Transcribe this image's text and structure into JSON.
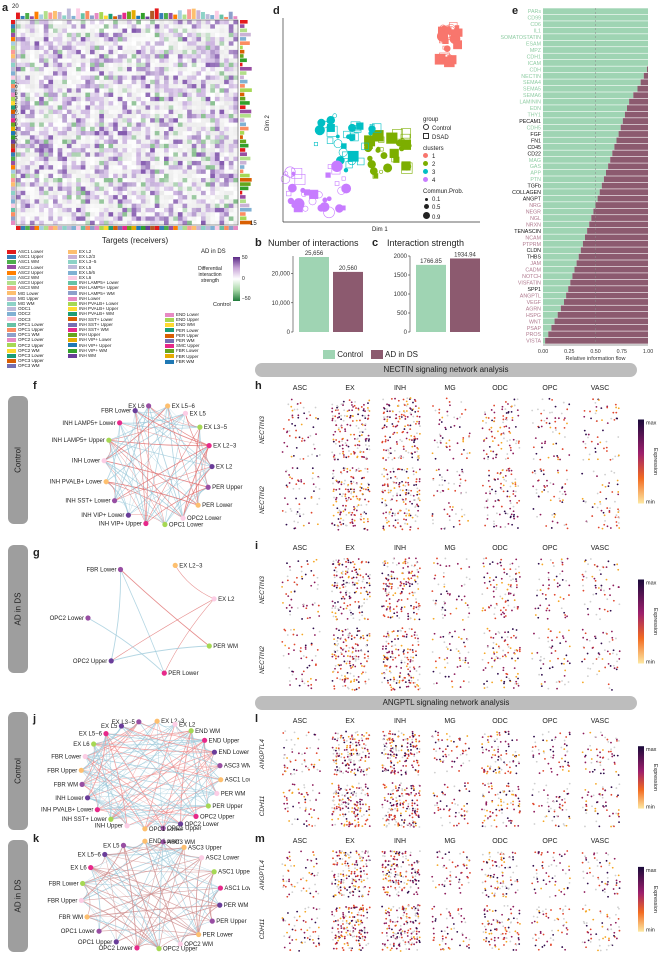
{
  "panel_labels": {
    "a": "a",
    "b": "b",
    "c": "c",
    "d": "d",
    "e": "e",
    "f": "f",
    "g": "g",
    "h": "h",
    "i": "i",
    "j": "j",
    "k": "k",
    "l": "l",
    "m": "m"
  },
  "heatmap": {
    "top_max": "20",
    "right_max": "15",
    "ylabel": "Sources (senders)",
    "xlabel": "Targets (receivers)",
    "legend_title": "AD in DS",
    "legend_side": "Differential interaction strength",
    "legend_bottom": "Control",
    "legend_ticks": [
      "50",
      "0",
      "−50"
    ]
  },
  "cell_legend": {
    "col1": [
      "ASC1 Lower",
      "ASC1 Upper",
      "ASC1 WM",
      "ASC2 Lower",
      "ASC2 Upper",
      "ASC2 WM",
      "ASC3 Upper",
      "ASC3 WM",
      "MG Lower",
      "MG Upper",
      "MG WM",
      "ODC1",
      "ODC2",
      "ODC3",
      "OPC1 Lower",
      "OPC1 Upper",
      "OPC1 WM",
      "OPC2 Lower",
      "OPC2 Upper",
      "OPC2 WM",
      "OPC3 Lower",
      "OPC3 Upper",
      "OPC3 WM"
    ],
    "col2": [
      "EX L2",
      "EX L2/3",
      "EX L3−5",
      "EX L5",
      "EX L5/6",
      "EX L6",
      "INH LAMP5+ Lower",
      "INH LAMP5+ Upper",
      "INH LAMP5+ WM",
      "INH Lower",
      "INH PVALB+ Lower",
      "INH PVALB+ Upper",
      "INH PVALB+ WM",
      "INH SST+ Lower",
      "INH SST+ Upper",
      "INH SST+ WM",
      "INH Upper",
      "INH VIP+ Lower",
      "INH VIP+ Upper",
      "INH VIP+ WM",
      "INH WM"
    ],
    "col3": [
      "END Lower",
      "END Upper",
      "END WM",
      "PER Lower",
      "PER Upper",
      "PER WM",
      "SMC Upper",
      "FBR Lower",
      "FBR Upper",
      "FBR WM"
    ]
  },
  "scatter_d": {
    "xlabel": "Dim 1",
    "ylabel": "Dim 2",
    "group_title": "group",
    "groups": [
      "Control",
      "DSAD"
    ],
    "clusters_title": "clusters",
    "clusters": [
      "1",
      "2",
      "3",
      "4"
    ],
    "cluster_colors": [
      "#f8766d",
      "#7cae00",
      "#00bfc4",
      "#c77cff"
    ],
    "size_title": "Commun.Prob.",
    "sizes": [
      "0.1",
      "0.5",
      "0.9"
    ]
  },
  "bar_b": {
    "title": "Number of interactions",
    "values": [
      25656,
      20560
    ],
    "labels": [
      "25,656",
      "20,560"
    ],
    "ticks": [
      "0",
      "10,000",
      "20,000"
    ]
  },
  "bar_c": {
    "title": "Interaction strength",
    "values": [
      1766.85,
      1934.94
    ],
    "labels": [
      "1766.85",
      "1934.94"
    ],
    "ticks": [
      "0",
      "500",
      "1000",
      "1500",
      "2000"
    ]
  },
  "legend_bc": {
    "control": "Control",
    "ad": "AD in DS",
    "control_color": "#9fd4b3",
    "ad_color": "#8c5a6f"
  },
  "chart_data": {
    "type": "bar",
    "title": "",
    "xlabel": "Relative information flow",
    "categories": [
      "PARs",
      "CD99",
      "CD6",
      "IL1",
      "SOMATOSTATIN",
      "ESAM",
      "MPZ",
      "CDH1",
      "ICAM",
      "CDH",
      "NECTIN",
      "SEMA4",
      "SEMA5",
      "SEMA6",
      "LAMININ",
      "EDN",
      "THY1",
      "PECAM1",
      "CDH5",
      "FGF",
      "FN1",
      "CD45",
      "CD22",
      "MAG",
      "GAS",
      "APP",
      "PTN",
      "TGFb",
      "COLLAGEN",
      "ANGPT",
      "NRG",
      "NEGR",
      "NGL",
      "NRXN",
      "TENASCIN",
      "NCAM",
      "PTPRM",
      "CLDN",
      "THBS",
      "JAM",
      "CADM",
      "NOTCH",
      "VISFATIN",
      "SPP1",
      "ANGPTL",
      "VEGF",
      "AGRN",
      "HSPG",
      "WNT",
      "PSAP",
      "PROS",
      "VISTA"
    ],
    "series": [
      {
        "name": "Control",
        "values": [
          1,
          1,
          1,
          1,
          1,
          1,
          1,
          1,
          1,
          0.99,
          0.96,
          0.93,
          0.9,
          0.86,
          0.82,
          0.8,
          0.78,
          0.76,
          0.74,
          0.72,
          0.7,
          0.68,
          0.66,
          0.64,
          0.62,
          0.6,
          0.58,
          0.56,
          0.54,
          0.52,
          0.5,
          0.48,
          0.46,
          0.44,
          0.42,
          0.4,
          0.38,
          0.36,
          0.34,
          0.32,
          0.3,
          0.28,
          0.26,
          0.24,
          0.22,
          0.2,
          0.17,
          0.14,
          0.11,
          0.08,
          0.05,
          0.02
        ]
      },
      {
        "name": "AD in DS",
        "values": [
          0,
          0,
          0,
          0,
          0,
          0,
          0,
          0,
          0,
          0.01,
          0.04,
          0.07,
          0.1,
          0.14,
          0.18,
          0.2,
          0.22,
          0.24,
          0.26,
          0.28,
          0.3,
          0.32,
          0.34,
          0.36,
          0.38,
          0.4,
          0.42,
          0.44,
          0.46,
          0.48,
          0.5,
          0.52,
          0.54,
          0.56,
          0.58,
          0.6,
          0.62,
          0.64,
          0.66,
          0.68,
          0.7,
          0.72,
          0.74,
          0.76,
          0.78,
          0.8,
          0.83,
          0.86,
          0.89,
          0.92,
          0.95,
          0.98
        ]
      }
    ],
    "label_colors": [
      "g",
      "g",
      "g",
      "g",
      "g",
      "g",
      "g",
      "g",
      "g",
      "g",
      "g",
      "g",
      "g",
      "g",
      "g",
      "g",
      "g",
      "k",
      "g",
      "k",
      "k",
      "k",
      "k",
      "g",
      "g",
      "g",
      "g",
      "k",
      "k",
      "k",
      "p",
      "p",
      "p",
      "p",
      "k",
      "p",
      "p",
      "k",
      "k",
      "p",
      "p",
      "p",
      "p",
      "k",
      "p",
      "p",
      "p",
      "p",
      "p",
      "p",
      "p",
      "p"
    ],
    "xticks": [
      "0.00",
      "0.25",
      "0.50",
      "0.75",
      "1.00"
    ],
    "xlim": [
      0,
      1
    ]
  },
  "nectin": {
    "section_title": "NECTIN signaling network analysis",
    "control_tab": "Control",
    "ad_tab": "AD in DS",
    "f_nodes": [
      "EX L6",
      "EX L5−6",
      "EX L5",
      "EX L3−5",
      "EX L2−3",
      "EX L2",
      "PER Upper",
      "PER Lower",
      "OPC2 Lower",
      "OPC1 Lower",
      "INH VIP+ Upper",
      "INH VIP+ Lower",
      "INH SST+ Lower",
      "INH PVALB+ Lower",
      "INH Lower",
      "INH LAMP5+ Upper",
      "INH LAMP5+ Lower",
      "FBR Lower"
    ],
    "g_nodes": [
      "FBR Lower",
      "EX L2−3",
      "EX L2",
      "PER WM",
      "PER Lower",
      "OPC2 Upper",
      "OPC2 Lower"
    ],
    "celltypes": [
      "ASC",
      "EX",
      "INH",
      "MG",
      "ODC",
      "OPC",
      "VASC"
    ],
    "genes": [
      "NECTIN3",
      "NECTIN2"
    ],
    "expr_label": "Expression",
    "expr_max": "max",
    "expr_min": "min"
  },
  "angptl": {
    "section_title": "ANGPTL signaling network analysis",
    "control_tab": "Control",
    "ad_tab": "AD in DS",
    "j_nodes": [
      "EX L3−5",
      "EX L2−3",
      "EX L2",
      "END WM",
      "END Upper",
      "END Lower",
      "ASC3 WM",
      "ASC1 Lower",
      "PER WM",
      "PER Upper",
      "OPC2 Upper",
      "OPC2 Lower",
      "OPC1 Upper",
      "OPC1 Lower",
      "INH Upper",
      "INH SST+ Lower",
      "INH PVALB+ Lower",
      "INH Lower",
      "FBR WM",
      "FBR Upper",
      "FBR Lower",
      "EX L6",
      "EX L5−6",
      "EX L5"
    ],
    "k_nodes": [
      "ASC3 WM",
      "ASC3 Upper",
      "ASC2 Lower",
      "ASC1 Upper",
      "ASC1 Lower",
      "PER WM",
      "PER Upper",
      "PER Lower",
      "OPC2 WM",
      "OPC2 Upper",
      "OPC2 Lower",
      "OPC1 Upper",
      "OPC1 Lower",
      "FBR WM",
      "FBR Upper",
      "FBR Lower",
      "EX L6",
      "EX L5−6",
      "EX L5",
      "END Lower"
    ],
    "celltypes": [
      "ASC",
      "EX",
      "INH",
      "MG",
      "ODC",
      "OPC",
      "VASC"
    ],
    "genes": [
      "ANGPTL4",
      "CDH11"
    ],
    "expr_label": "Expression",
    "expr_max": "max",
    "expr_min": "min"
  }
}
